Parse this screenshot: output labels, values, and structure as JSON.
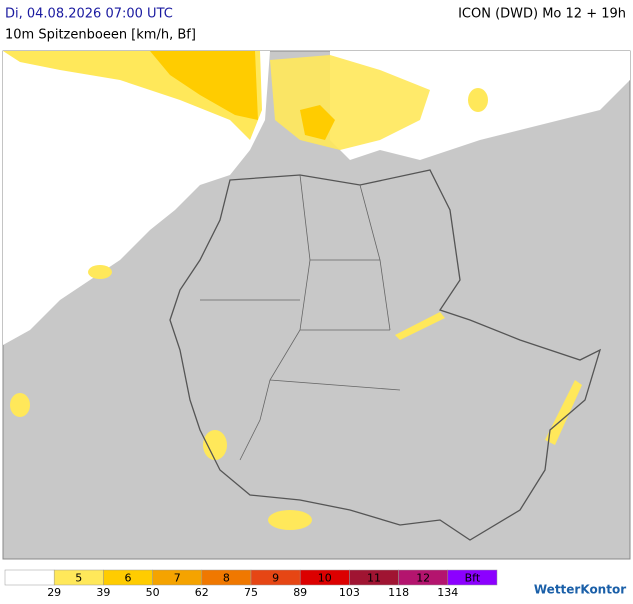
{
  "header": {
    "left": "Di, 04.08.2026 07:00 UTC",
    "right": "ICON (DWD) Mo 12 + 19h",
    "subtitle": "10m Spitzenboeen [km/h, Bf]"
  },
  "legend": {
    "classes": [
      {
        "label": "",
        "color": "#ffffff"
      },
      {
        "label": "5",
        "color": "#ffe85a"
      },
      {
        "label": "6",
        "color": "#ffcc00"
      },
      {
        "label": "7",
        "color": "#f5a300"
      },
      {
        "label": "8",
        "color": "#f07800"
      },
      {
        "label": "9",
        "color": "#e64614"
      },
      {
        "label": "10",
        "color": "#dc0000"
      },
      {
        "label": "11",
        "color": "#a01432"
      },
      {
        "label": "12",
        "color": "#b4146e"
      },
      {
        "label": "Bft",
        "color": "#8c00ff"
      }
    ],
    "thresholds": [
      29,
      39,
      50,
      62,
      75,
      89,
      103,
      118,
      134
    ]
  },
  "logo": "WetterKontor"
}
